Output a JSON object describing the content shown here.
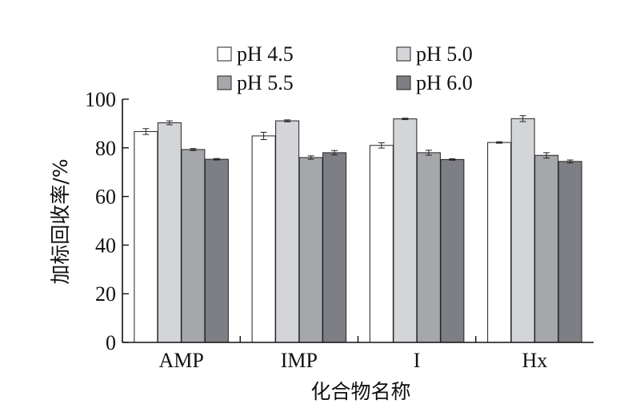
{
  "chart_data": {
    "type": "bar",
    "title": "",
    "xlabel": "化合物名称",
    "ylabel": "加标回收率/%",
    "ylim": [
      0,
      100
    ],
    "yticks": [
      0,
      20,
      40,
      60,
      80,
      100
    ],
    "categories": [
      "AMP",
      "IMP",
      "I",
      "Hx"
    ],
    "legend_position": "top",
    "grid": false,
    "series": [
      {
        "name": "pH 4.5",
        "color": "#ffffff",
        "values": [
          86.7,
          84.9,
          81.0,
          82.2
        ],
        "errors": [
          1.2,
          1.5,
          1.1,
          0.3
        ]
      },
      {
        "name": "pH 5.0",
        "color": "#d4d5d9",
        "values": [
          90.3,
          91.1,
          91.9,
          92.0
        ],
        "errors": [
          0.8,
          0.4,
          0.3,
          1.2
        ]
      },
      {
        "name": "pH 5.5",
        "color": "#a6a7ab",
        "values": [
          79.3,
          76.0,
          78.0,
          76.9
        ],
        "errors": [
          0.4,
          0.7,
          1.0,
          1.1
        ]
      },
      {
        "name": "pH 6.0",
        "color": "#7e7f84",
        "values": [
          75.3,
          78.0,
          75.2,
          74.4
        ],
        "errors": [
          0.3,
          0.9,
          0.3,
          0.6
        ]
      }
    ]
  }
}
